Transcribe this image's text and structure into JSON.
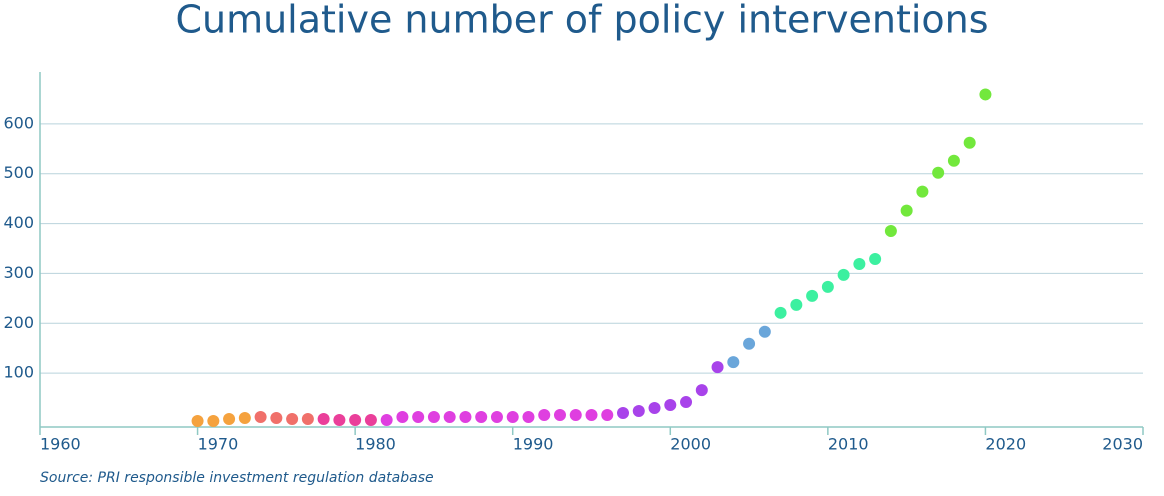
{
  "chart_data": {
    "type": "scatter",
    "title": "Cumulative number of policy interventions",
    "source": "Source: PRI responsible investment regulation database",
    "x": [
      1970,
      1971,
      1972,
      1973,
      1974,
      1975,
      1976,
      1977,
      1978,
      1979,
      1980,
      1981,
      1982,
      1983,
      1984,
      1985,
      1986,
      1987,
      1988,
      1989,
      1990,
      1991,
      1992,
      1993,
      1994,
      1995,
      1996,
      1997,
      1998,
      1999,
      2000,
      2001,
      2002,
      2003,
      2004,
      2005,
      2006,
      2007,
      2008,
      2009,
      2010,
      2011,
      2012,
      2013,
      2014,
      2015,
      2016,
      2017,
      2018,
      2019,
      2020
    ],
    "values": [
      4,
      4,
      8,
      10,
      12,
      10,
      8,
      8,
      8,
      6,
      6,
      6,
      6,
      12,
      12,
      12,
      12,
      12,
      12,
      12,
      12,
      12,
      16,
      16,
      16,
      16,
      16,
      20,
      24,
      30,
      36,
      42,
      66,
      112,
      122,
      159,
      183,
      221,
      237,
      255,
      273,
      297,
      319,
      329,
      385,
      426,
      464,
      502,
      526,
      562,
      659
    ],
    "colors": [
      "#f5a23e",
      "#f5a23e",
      "#f5a23e",
      "#f5a23e",
      "#f0706a",
      "#f0706a",
      "#f0706a",
      "#f0706a",
      "#ea3f9a",
      "#ea3f9a",
      "#ea3f9a",
      "#ea3f9a",
      "#df3fe0",
      "#df3fe0",
      "#df3fe0",
      "#df3fe0",
      "#df3fe0",
      "#df3fe0",
      "#df3fe0",
      "#df3fe0",
      "#df3fe0",
      "#df3fe0",
      "#df3fe0",
      "#df3fe0",
      "#df3fe0",
      "#df3fe0",
      "#df3fe0",
      "#a843ea",
      "#a843ea",
      "#a843ea",
      "#a843ea",
      "#a843ea",
      "#a843ea",
      "#a843ea",
      "#6aa6da",
      "#6aa6da",
      "#6aa6da",
      "#3cf0a0",
      "#3cf0a0",
      "#3cf0a0",
      "#3cf0a0",
      "#3cf0a0",
      "#3cf0a0",
      "#3cf0a0",
      "#72e83c",
      "#72e83c",
      "#72e83c",
      "#72e83c",
      "#72e83c",
      "#72e83c",
      "#72e83c"
    ],
    "xlim": [
      1960,
      2030
    ],
    "xticks": [
      1960,
      1970,
      1980,
      1990,
      2000,
      2010,
      2020,
      2030
    ],
    "ylim": [
      0,
      700
    ],
    "yticks": [
      100,
      200,
      300,
      400,
      500,
      600
    ],
    "grid": true
  }
}
